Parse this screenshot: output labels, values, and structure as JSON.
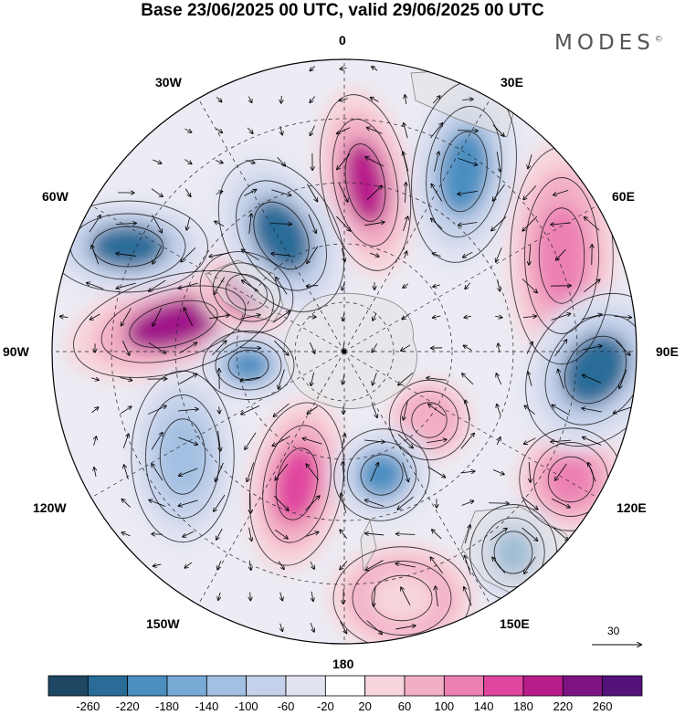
{
  "title": "Base 23/06/2025 00 UTC, valid 29/06/2025 00 UTC",
  "brand": "MODES",
  "brand_mark": "©",
  "longitude_labels": {
    "n0": "0",
    "w30": "30W",
    "e30": "30E",
    "w60": "60W",
    "e60": "60E",
    "w90": "90W",
    "e90": "90E",
    "w120": "120W",
    "e120": "120E",
    "w150": "150W",
    "e150": "150E",
    "s180": "180"
  },
  "reference_vector": "30",
  "colorbar": {
    "ticks": [
      "-260",
      "-220",
      "-180",
      "-140",
      "-100",
      "-60",
      "-20",
      "20",
      "60",
      "100",
      "140",
      "180",
      "220",
      "260"
    ],
    "colors": [
      "#1d4763",
      "#2a6c98",
      "#4b8fc1",
      "#78aad6",
      "#a3c0e2",
      "#c5d1ea",
      "#e1e3f1",
      "#ffffff",
      "#f7d5dc",
      "#f2aec5",
      "#ec80b3",
      "#e0469f",
      "#b81d8c",
      "#7e1484",
      "#54127a"
    ]
  },
  "anomalies": [
    {
      "id": "a1",
      "kind": "high",
      "strength": "strong",
      "color": "#b81d8c"
    },
    {
      "id": "a2",
      "kind": "high",
      "strength": "strong",
      "color": "#a0198a"
    },
    {
      "id": "a3",
      "kind": "high",
      "strength": "strong",
      "color": "#b81d8c"
    },
    {
      "id": "a4",
      "kind": "high",
      "strength": "moderate",
      "color": "#e0469f"
    },
    {
      "id": "a5",
      "kind": "high",
      "strength": "moderate",
      "color": "#ec80b3"
    },
    {
      "id": "a6",
      "kind": "high",
      "strength": "moderate",
      "color": "#ec80b3"
    },
    {
      "id": "a7",
      "kind": "high",
      "strength": "weak",
      "color": "#f2aec5"
    },
    {
      "id": "a8",
      "kind": "high",
      "strength": "weak",
      "color": "#f7d5dc"
    },
    {
      "id": "a9",
      "kind": "low",
      "strength": "strong",
      "color": "#2a6c98"
    },
    {
      "id": "a10",
      "kind": "low",
      "strength": "strong",
      "color": "#2a6c98"
    },
    {
      "id": "a11",
      "kind": "low",
      "strength": "strong",
      "color": "#2a6c98"
    },
    {
      "id": "a12",
      "kind": "low",
      "strength": "moderate",
      "color": "#4b8fc1"
    },
    {
      "id": "a13",
      "kind": "low",
      "strength": "moderate",
      "color": "#4b8fc1"
    },
    {
      "id": "a14",
      "kind": "low",
      "strength": "moderate",
      "color": "#4b8fc1"
    },
    {
      "id": "a15",
      "kind": "low",
      "strength": "moderate",
      "color": "#4b8fc1"
    },
    {
      "id": "a16",
      "kind": "low",
      "strength": "weak",
      "color": "#a3c0e2"
    }
  ]
}
